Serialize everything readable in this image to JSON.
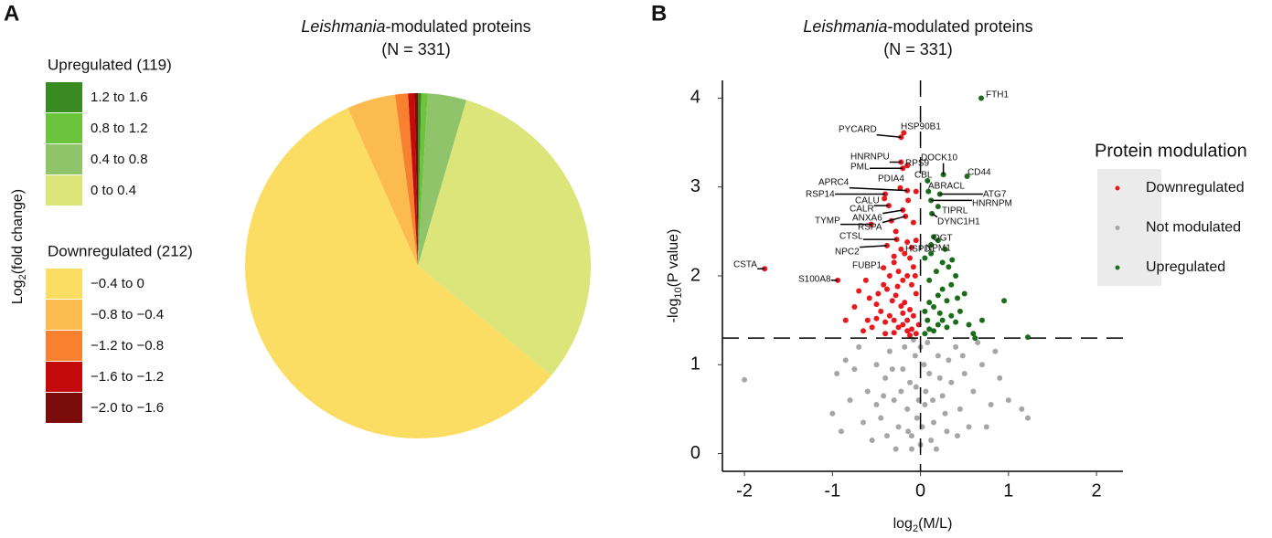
{
  "chart_data": [
    {
      "type": "pie",
      "panel": "A",
      "title_italic": "Leishmania",
      "title": "-modulated proteins",
      "subtitle": "(N = 331)",
      "legend_title_parts": [
        "Log",
        "2",
        "(fold change)"
      ],
      "legend_groups": [
        "Upregulated (119)",
        "Downregulated (212)"
      ],
      "categories": [
        "1.2 to 1.6",
        "0.8 to 1.2",
        "0.4 to 0.8",
        "0 to 0.4",
        "−0.4 to 0",
        "−0.8 to −0.4",
        "−1.2 to −0.8",
        "−1.6 to −1.2",
        "−2.0 to −1.6"
      ],
      "values": [
        1,
        2,
        12,
        104,
        190,
        15,
        4,
        2,
        1
      ],
      "colors": [
        "#3a8a22",
        "#6cc43c",
        "#8fc46a",
        "#dbe57a",
        "#fadd62",
        "#fbbb4f",
        "#f7812f",
        "#c40a0a",
        "#7a0c0c"
      ]
    },
    {
      "type": "scatter",
      "panel": "B",
      "title_italic": "Leishmania",
      "title": "-modulated proteins",
      "subtitle": "(N = 331)",
      "xlabel_parts": [
        "log",
        "2",
        "(M/L)"
      ],
      "ylabel_parts": [
        "-log",
        "10",
        "(P value)"
      ],
      "xlim": [
        -2.25,
        2.3
      ],
      "ylim": [
        -0.2,
        4.2
      ],
      "xticks": [
        -2,
        -1,
        0,
        1,
        2
      ],
      "yticks": [
        0,
        1,
        2,
        3,
        4
      ],
      "hlines": [
        1.3
      ],
      "vlines": [
        0
      ],
      "legend_title": "Protein modulation",
      "series": [
        {
          "name": "Downregulated",
          "color": "#e8191c",
          "labels": [
            "PYCARD",
            "HSP90B1",
            "HNRNPU",
            "PML",
            "RPS9",
            "PDIA4",
            "APRC4",
            "RSP14",
            "CALU",
            "CALR",
            "ANXA6",
            "RSPA",
            "TYMP",
            "CTSL",
            "HSPD1",
            "NPC2",
            "FUBP1",
            "CSTA",
            "S100A8",
            null,
            null,
            null,
            null,
            null,
            null,
            null,
            null,
            null,
            null,
            null,
            null,
            null,
            null,
            null,
            null,
            null,
            null,
            null,
            null,
            null,
            null,
            null,
            null,
            null,
            null,
            null,
            null,
            null,
            null,
            null,
            null,
            null,
            null,
            null,
            null,
            null,
            null,
            null,
            null,
            null,
            null,
            null,
            null,
            null,
            null,
            null,
            null,
            null,
            null,
            null,
            null,
            null,
            null,
            null
          ],
          "x": [
            -0.22,
            -0.19,
            -0.22,
            -0.2,
            -0.15,
            -0.23,
            -0.15,
            -0.4,
            -0.41,
            -0.36,
            -0.2,
            -0.17,
            -0.56,
            -0.27,
            -0.15,
            -0.38,
            -0.42,
            -1.77,
            -0.94,
            -0.05,
            -0.1,
            -0.15,
            -0.2,
            -0.25,
            -0.3,
            -0.35,
            -0.4,
            -0.45,
            -0.5,
            -0.55,
            -0.6,
            -0.08,
            -0.12,
            -0.18,
            -0.22,
            -0.28,
            -0.32,
            -0.38,
            -0.42,
            -0.48,
            -0.62,
            -0.7,
            -0.75,
            -0.05,
            -0.1,
            -0.15,
            -0.2,
            -0.25,
            -0.3,
            -0.35,
            -0.08,
            -0.12,
            -0.18,
            -0.22,
            -0.05,
            -0.1,
            -0.28,
            -0.08,
            -0.3,
            -0.02,
            -0.4,
            -0.65,
            -0.85,
            -0.15,
            -0.2,
            -0.5,
            -0.58,
            -0.26,
            -0.06,
            -0.14,
            -0.05,
            -0.33,
            -0.12,
            -0.3
          ],
          "values": [
            3.56,
            3.61,
            3.28,
            3.21,
            3.24,
            2.99,
            2.96,
            2.92,
            2.87,
            2.79,
            2.74,
            2.67,
            2.58,
            2.41,
            2.38,
            2.34,
            2.09,
            2.08,
            1.95,
            1.35,
            1.4,
            1.38,
            1.45,
            1.42,
            1.5,
            1.55,
            1.48,
            1.6,
            1.52,
            1.42,
            1.5,
            1.55,
            1.62,
            1.7,
            1.66,
            1.78,
            1.72,
            1.85,
            1.9,
            1.8,
            1.95,
            1.83,
            1.65,
            1.8,
            1.9,
            2.0,
            1.95,
            2.05,
            2.15,
            2.0,
            2.1,
            2.2,
            2.25,
            2.3,
            2.4,
            2.32,
            2.5,
            2.6,
            2.22,
            1.45,
            1.35,
            1.38,
            1.5,
            1.5,
            1.58,
            1.68,
            1.75,
            1.88,
            2.0,
            2.85,
            2.95,
            2.62,
            1.33,
            1.36
          ]
        },
        {
          "name": "Not modulated",
          "color": "#a6a6a6",
          "x": [
            -2.0,
            1.22,
            -1.0,
            -0.95,
            -0.7,
            -0.6,
            -0.5,
            -0.45,
            -0.4,
            -0.35,
            -0.3,
            -0.25,
            -0.2,
            -0.15,
            -0.1,
            -0.05,
            0,
            0.05,
            0.1,
            0.15,
            0.2,
            0.25,
            0.3,
            0.35,
            0.4,
            0.45,
            0.5,
            0.55,
            0.6,
            0.7,
            0.8,
            0.9,
            1.0,
            1.15,
            -0.8,
            -0.85,
            -0.65,
            -0.55,
            -0.1,
            0.02,
            -0.02,
            0.08,
            -0.08,
            -0.18,
            0.12,
            -0.28,
            0.18,
            -0.38,
            0.28,
            -0.12,
            0.04,
            -0.04,
            0.22,
            -0.22,
            0.32,
            -0.32,
            0.42,
            -0.42,
            0.65,
            -0.75,
            0.0,
            0.06,
            -0.06,
            0.14,
            -0.14,
            0.48,
            -0.5,
            0.75,
            0.85,
            -0.9
          ],
          "values": [
            0.83,
            0.4,
            0.45,
            0.9,
            1.2,
            0.7,
            1.0,
            0.4,
            0.85,
            1.15,
            0.6,
            0.3,
            0.95,
            0.5,
            0.2,
            0.75,
            0.1,
            0.55,
            0.9,
            0.35,
            1.1,
            0.65,
            0.25,
            0.8,
            1.2,
            0.5,
            0.9,
            0.3,
            0.7,
            1.0,
            0.55,
            0.85,
            0.6,
            0.5,
            0.6,
            1.05,
            0.35,
            0.15,
            0.05,
            0.3,
            0.6,
            1.25,
            1.28,
            1.2,
            0.15,
            0.05,
            0.05,
            0.2,
            0.45,
            0.8,
            1.0,
            0.4,
            0.85,
            0.7,
            1.05,
            0.95,
            0.2,
            0.65,
            1.25,
            0.95,
            1.2,
            0.7,
            1.1,
            0.6,
            0.25,
            1.1,
            0.55,
            0.3,
            1.15,
            0.25
          ]
        },
        {
          "name": "Upregulated",
          "color": "#1a6e1a",
          "labels": [
            "FTH1",
            "DOCK10",
            "CD44",
            "CBL",
            "ABRACL",
            "ATG7",
            "HNRNPM",
            "TIPRL",
            "DYNC1H1",
            "OGT",
            "NPM1",
            null,
            null,
            null,
            null,
            null,
            null,
            null,
            null,
            null,
            null,
            null,
            null,
            null,
            null,
            null,
            null,
            null,
            null,
            null,
            null,
            null,
            null,
            null,
            null,
            null,
            null,
            null,
            null,
            null,
            null,
            null,
            null,
            null,
            null,
            null,
            null
          ],
          "x": [
            0.69,
            0.26,
            0.53,
            0.08,
            0.09,
            0.22,
            0.12,
            0.2,
            0.13,
            0.15,
            0.12,
            0.05,
            0.1,
            0.15,
            0.2,
            0.25,
            0.3,
            0.35,
            0.4,
            0.45,
            0.05,
            0.1,
            0.15,
            0.2,
            0.25,
            0.3,
            0.35,
            0.4,
            0.1,
            0.18,
            0.25,
            0.32,
            0.05,
            0.12,
            0.28,
            0.36,
            0.2,
            0.5,
            0.55,
            0.6,
            0.7,
            0.62,
            0.95,
            1.22,
            0.08,
            0.42,
            0.22
          ],
          "values": [
            4.0,
            3.14,
            3.12,
            3.07,
            2.95,
            2.92,
            2.85,
            2.78,
            2.7,
            2.44,
            2.35,
            1.35,
            1.4,
            1.38,
            1.45,
            1.5,
            1.42,
            1.55,
            1.48,
            1.6,
            1.6,
            1.7,
            1.65,
            1.78,
            1.85,
            1.72,
            1.9,
            2.0,
            1.95,
            2.05,
            2.15,
            2.1,
            2.2,
            2.25,
            2.3,
            2.18,
            2.4,
            1.8,
            1.45,
            1.35,
            1.5,
            1.3,
            1.72,
            1.31,
            1.5,
            1.75,
            1.58
          ]
        }
      ]
    }
  ]
}
